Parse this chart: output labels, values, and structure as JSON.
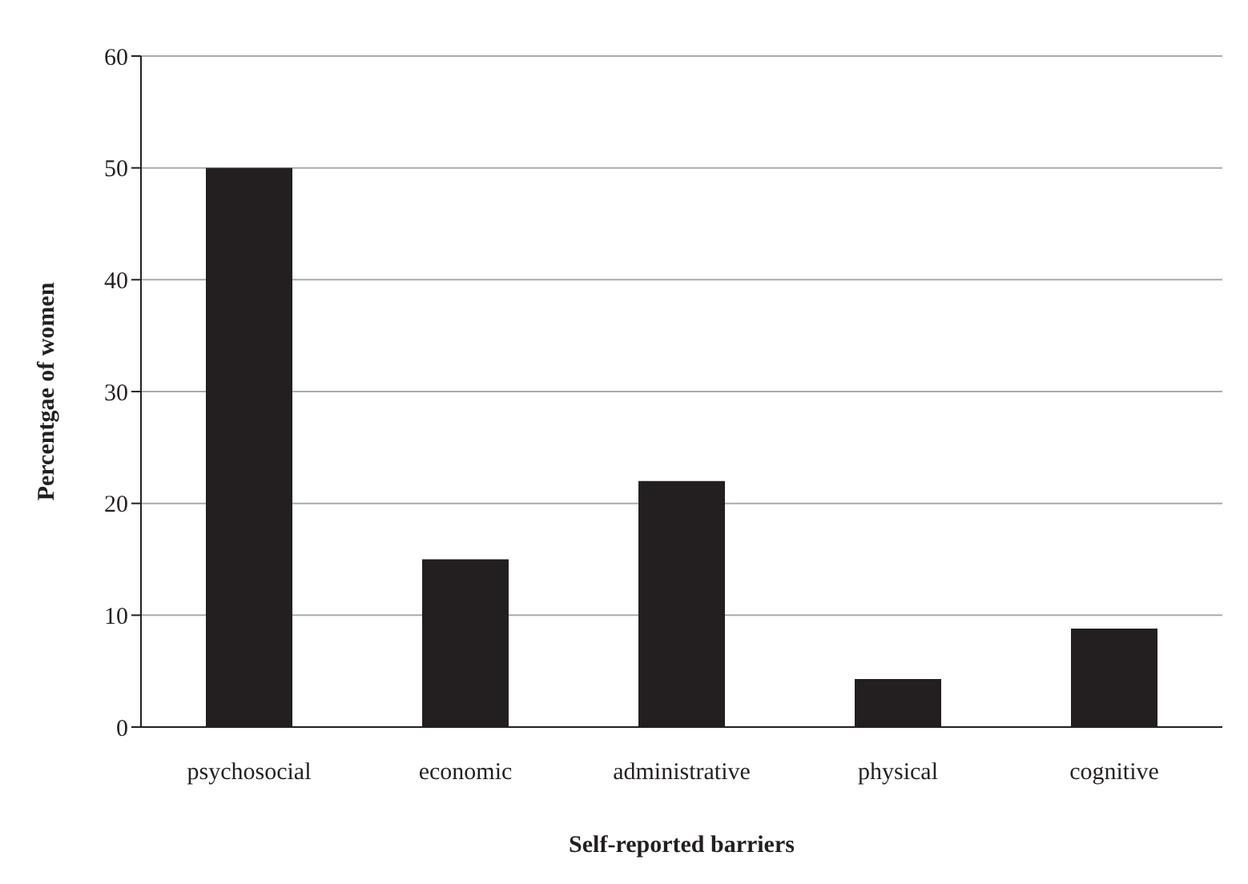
{
  "chart_data": {
    "type": "bar",
    "xlabel": "Self-reported barriers",
    "ylabel": "Percentgae of women",
    "categories": [
      "psychosocial",
      "economic",
      "administrative",
      "physical",
      "cognitive"
    ],
    "values": [
      50,
      15,
      22,
      4.3,
      8.8
    ],
    "color": "#231f20",
    "ylim": [
      0,
      60
    ],
    "yticks": [
      0,
      10,
      20,
      30,
      40,
      50,
      60
    ],
    "grid": "y"
  }
}
